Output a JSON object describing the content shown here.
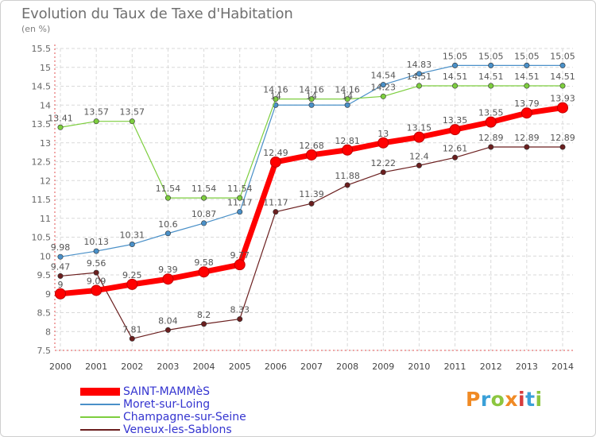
{
  "title": "Evolution du Taux de Taxe d'Habitation",
  "unit_label": "(en %)",
  "brand": {
    "text": "Proxiti",
    "colors": [
      "#f08a24",
      "#3aa0d8",
      "#8cc63f",
      "#f08a24",
      "#d63c3c",
      "#3aa0d8",
      "#8cc63f"
    ]
  },
  "chart_data": {
    "type": "line",
    "title": "Evolution du Taux de Taxe d'Habitation",
    "ylabel": "(en %)",
    "xlabel": "",
    "x": [
      "2000",
      "2001",
      "2002",
      "2003",
      "2004",
      "2005",
      "2006",
      "2007",
      "2008",
      "2009",
      "2010",
      "2011",
      "2012",
      "2013",
      "2014"
    ],
    "ylim": [
      7.5,
      15.5
    ],
    "yticks": [
      "7.5",
      "8",
      "8.5",
      "9",
      "9.5",
      "10",
      "10.5",
      "11",
      "11.5",
      "12",
      "12.5",
      "13",
      "13.5",
      "14",
      "14.5",
      "15",
      "15.5"
    ],
    "grid": true,
    "legend_position": "bottom-left",
    "series": [
      {
        "name": "SAINT-MAMMèS",
        "color": "#ff0000",
        "emphasis": true,
        "values": [
          9,
          9.09,
          9.25,
          9.39,
          9.58,
          9.77,
          12.49,
          12.68,
          12.81,
          13,
          13.15,
          13.35,
          13.55,
          13.79,
          13.93
        ],
        "labels": [
          "9",
          "9.09",
          "9.25",
          "9.39",
          "9.58",
          "9.77",
          "12.49",
          "12.68",
          "12.81",
          "13",
          "13.15",
          "13.35",
          "13.55",
          "13.79",
          "13.93"
        ]
      },
      {
        "name": "Moret-sur-Loing",
        "color": "#4a90c8",
        "values": [
          9.98,
          10.13,
          10.31,
          10.6,
          10.87,
          11.17,
          14,
          14,
          14,
          14.54,
          14.83,
          15.05,
          15.05,
          15.05,
          15.05
        ],
        "labels": [
          "9.98",
          "10.13",
          "10.31",
          "10.6",
          "10.87",
          "11.17",
          "14",
          "14",
          "14",
          "14.54",
          "14.83",
          "15.05",
          "15.05",
          "15.05",
          "15.05"
        ]
      },
      {
        "name": "Champagne-sur-Seine",
        "color": "#7dce3e",
        "values": [
          13.41,
          13.57,
          13.57,
          11.54,
          11.54,
          11.54,
          14.16,
          14.16,
          14.16,
          14.23,
          14.51,
          14.51,
          14.51,
          14.51,
          14.51
        ],
        "labels": [
          "13.41",
          "13.57",
          "13.57",
          "11.54",
          "11.54",
          "11.54",
          "14.16",
          "14.16",
          "14.16",
          "14.23",
          "14.51",
          "14.51",
          "14.51",
          "14.51",
          "14.51"
        ]
      },
      {
        "name": "Veneux-les-Sablons",
        "color": "#6b1f1f",
        "values": [
          9.47,
          9.56,
          7.81,
          8.04,
          8.2,
          8.33,
          11.17,
          11.39,
          11.88,
          12.22,
          12.4,
          12.61,
          12.89,
          12.89,
          12.89
        ],
        "labels": [
          "9.47",
          "9.56",
          "7.81",
          "8.04",
          "8.2",
          "8.33",
          "11.17",
          "11.39",
          "11.88",
          "12.22",
          "12.4",
          "12.61",
          "12.89",
          "12.89",
          "12.89"
        ]
      }
    ]
  }
}
